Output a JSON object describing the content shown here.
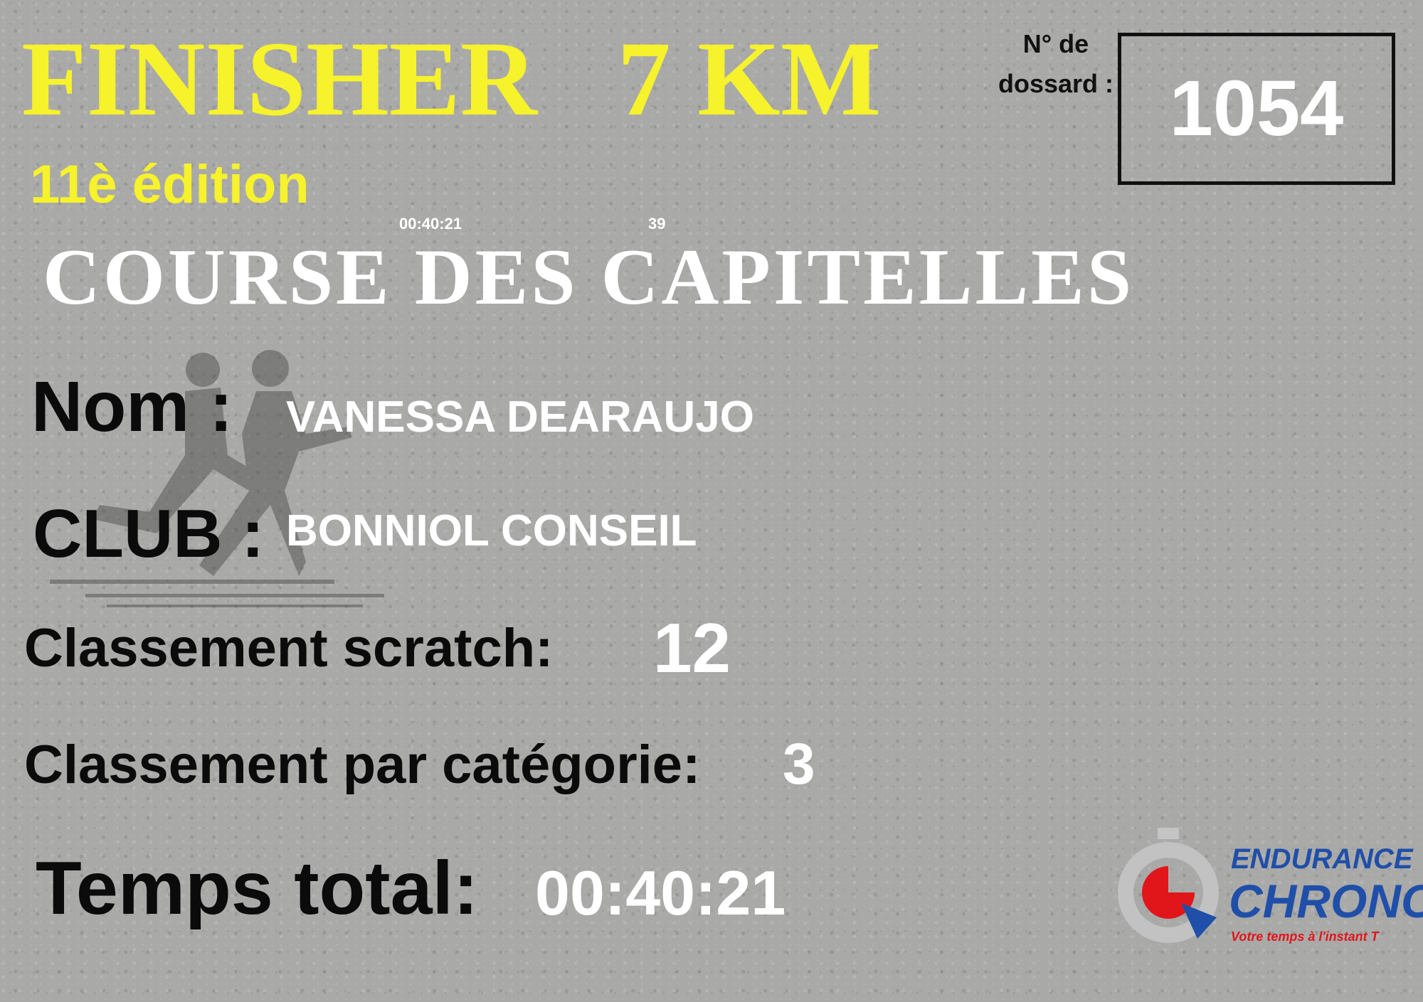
{
  "header": {
    "title": "FINISHER   7 KM",
    "edition": "11è édition",
    "race_name": "COURSE DES CAPITELLES",
    "overlay_time": "00:40:21",
    "overlay_number": "39"
  },
  "bib": {
    "label": "N° de dossard :",
    "number": "1054"
  },
  "fields": {
    "name_label": "Nom :",
    "name_value": "VANESSA DEARAUJO",
    "club_label": "CLUB :",
    "club_value": "BONNIOL CONSEIL",
    "scratch_label": "Classement scratch:",
    "scratch_value": "12",
    "category_label": "Classement par catégorie:",
    "category_value": "3",
    "time_label": "Temps total:",
    "time_value": "00:40:21"
  },
  "logo": {
    "line1": "ENDURANCE",
    "line2": "CHRONO",
    "tagline": "Votre temps à l'instant T"
  },
  "colors": {
    "accent_yellow": "#f6f22c",
    "logo_blue": "#1f4fa8",
    "logo_red": "#e0161b"
  },
  "icons": {
    "silhouette": "runners-silhouette-icon",
    "logo_mark": "stopwatch-icon"
  }
}
